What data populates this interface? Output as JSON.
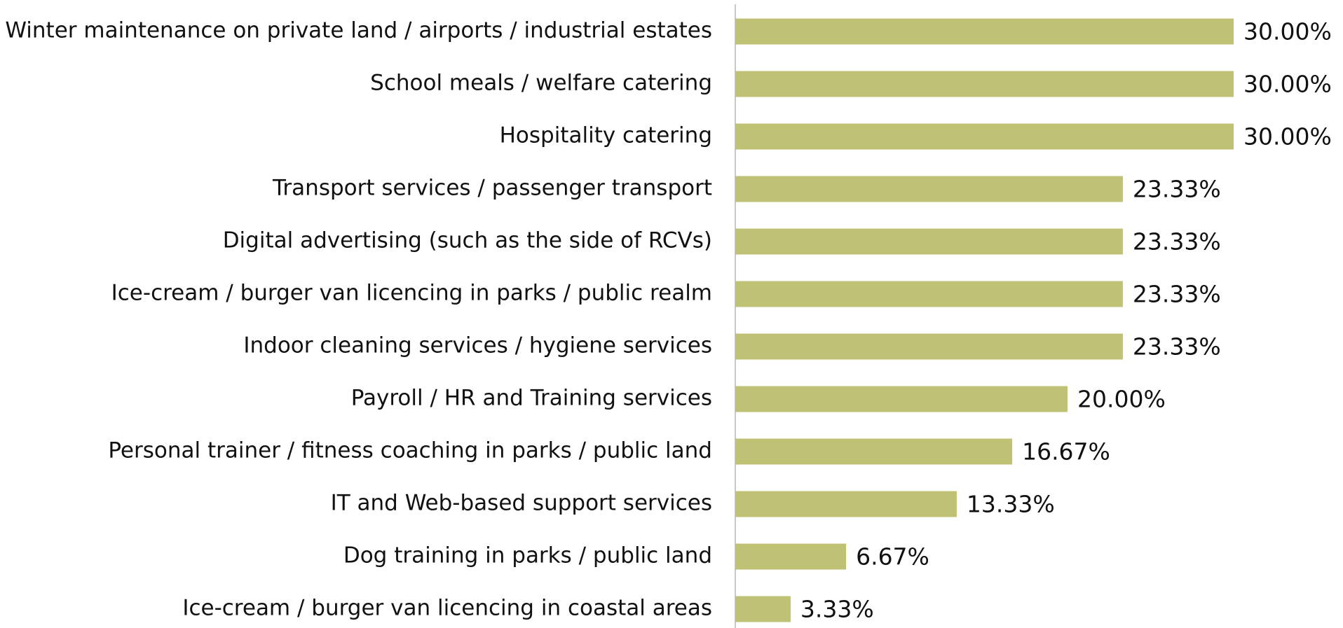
{
  "chart_data": {
    "type": "bar",
    "orientation": "horizontal",
    "color": "#bfc274",
    "categories": [
      "Winter maintenance on private land / airports / industrial estates",
      "School meals / welfare catering",
      "Hospitality catering",
      "Transport services / passenger transport",
      "Digital advertising (such as the side of RCVs)",
      "Ice-cream / burger van licencing in parks / public realm",
      "Indoor cleaning services / hygiene services",
      "Payroll / HR and Training services",
      "Personal trainer / fitness coaching in parks / public land",
      "IT and Web-based support services",
      "Dog training in parks / public land",
      "Ice-cream / burger van licencing in coastal areas"
    ],
    "values": [
      30,
      30,
      30,
      23.33,
      23.33,
      23.33,
      23.33,
      20,
      16.67,
      13.33,
      6.67,
      3.33
    ],
    "value_labels": [
      "30.00%",
      "30.00%",
      "30.00%",
      "23.33%",
      "23.33%",
      "23.33%",
      "23.33%",
      "20.00%",
      "16.67%",
      "13.33%",
      "6.67%",
      "3.33%"
    ]
  }
}
